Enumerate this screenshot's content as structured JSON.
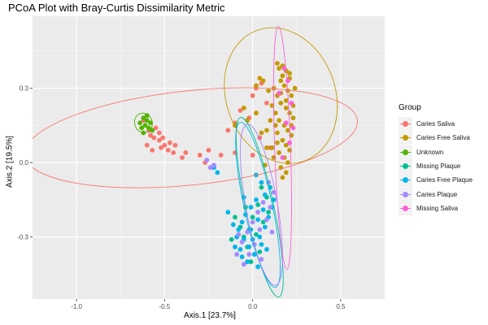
{
  "chart_data": {
    "type": "scatter",
    "title": "PCoA Plot with Bray-Curtis Dissimilarity Metric",
    "xlabel": "Axis.1   [23.7%]",
    "ylabel": "Axis.2   [19.5%]",
    "xlim": [
      -1.25,
      0.75
    ],
    "ylim": [
      -0.55,
      0.59
    ],
    "x_ticks": [
      -1.0,
      -0.5,
      0.0,
      0.5
    ],
    "x_tick_labels": [
      "-1.0",
      "-0.5",
      "0.0",
      "0.5"
    ],
    "y_ticks": [
      -0.3,
      0.0,
      0.3
    ],
    "y_tick_labels": [
      "-0.3",
      "0.0",
      "0.3"
    ],
    "grid": true,
    "legend_title": "Group",
    "legend_position": "right",
    "series": [
      {
        "name": "Caries Saliva",
        "color": "#F8766D",
        "points": [
          [
            -0.62,
            0.17
          ],
          [
            -0.59,
            0.13
          ],
          [
            -0.56,
            0.1
          ],
          [
            -0.53,
            0.09
          ],
          [
            -0.52,
            0.06
          ],
          [
            -0.55,
            0.14
          ],
          [
            -0.5,
            0.07
          ],
          [
            -0.48,
            0.05
          ],
          [
            -0.45,
            0.04
          ],
          [
            -0.57,
            0.05
          ],
          [
            -0.6,
            0.07
          ],
          [
            -0.53,
            0.12
          ],
          [
            -0.51,
            0.1
          ],
          [
            -0.47,
            0.08
          ],
          [
            -0.44,
            0.07
          ],
          [
            -0.58,
            0.11
          ],
          [
            -0.4,
            0.02
          ],
          [
            -0.38,
            0.04
          ],
          [
            -0.3,
            0.03
          ],
          [
            -0.27,
            0.0
          ],
          [
            -0.25,
            0.05
          ],
          [
            -0.22,
            -0.02
          ],
          [
            -0.18,
            0.03
          ],
          [
            -0.14,
            0.13
          ],
          [
            -0.1,
            0.16
          ],
          [
            -0.07,
            0.21
          ],
          [
            0.0,
            0.27
          ],
          [
            0.02,
            0.3
          ],
          [
            0.05,
            0.32
          ],
          [
            0.08,
            0.24
          ],
          [
            -0.02,
            0.18
          ],
          [
            0.04,
            0.1
          ],
          [
            0.1,
            0.06
          ],
          [
            0.12,
            0.02
          ],
          [
            -0.1,
            0.04
          ],
          [
            0.0,
            0.03
          ]
        ]
      },
      {
        "name": "Caries Free Saliva",
        "color": "#C49A00",
        "points": [
          [
            0.14,
            0.4
          ],
          [
            0.15,
            0.38
          ],
          [
            0.17,
            0.39
          ],
          [
            0.19,
            0.37
          ],
          [
            0.21,
            0.36
          ],
          [
            0.16,
            0.33
          ],
          [
            0.18,
            0.31
          ],
          [
            0.2,
            0.29
          ],
          [
            0.22,
            0.27
          ],
          [
            0.14,
            0.27
          ],
          [
            0.16,
            0.24
          ],
          [
            0.19,
            0.22
          ],
          [
            0.21,
            0.2
          ],
          [
            0.23,
            0.18
          ],
          [
            0.13,
            0.2
          ],
          [
            0.15,
            0.17
          ],
          [
            0.18,
            0.15
          ],
          [
            0.2,
            0.13
          ],
          [
            0.22,
            0.11
          ],
          [
            0.14,
            0.12
          ],
          [
            0.17,
            0.09
          ],
          [
            0.19,
            0.07
          ],
          [
            0.21,
            0.05
          ],
          [
            0.15,
            0.04
          ],
          [
            0.18,
            0.02
          ],
          [
            0.2,
            0.0
          ],
          [
            0.16,
            -0.02
          ],
          [
            0.19,
            -0.04
          ],
          [
            0.17,
            -0.06
          ],
          [
            0.11,
            0.23
          ],
          [
            0.1,
            0.17
          ],
          [
            0.08,
            0.13
          ],
          [
            0.12,
            0.3
          ],
          [
            0.09,
            0.29
          ],
          [
            0.06,
            0.33
          ],
          [
            0.04,
            0.34
          ],
          [
            0.02,
            0.31
          ],
          [
            -0.05,
            0.22
          ],
          [
            -0.1,
            0.15
          ],
          [
            0.02,
            0.2
          ],
          [
            -0.03,
            0.17
          ],
          [
            0.05,
            0.12
          ],
          [
            0.08,
            0.06
          ],
          [
            0.12,
            0.02
          ],
          [
            0.07,
            -0.01
          ],
          [
            0.24,
            0.3
          ],
          [
            0.23,
            0.23
          ],
          [
            0.21,
            0.34
          ],
          [
            0.17,
            0.35
          ],
          [
            0.14,
            0.08
          ],
          [
            0.22,
            0.15
          ],
          [
            0.11,
            0.06
          ],
          [
            0.13,
            0.15
          ],
          [
            0.16,
            0.28
          ],
          [
            0.19,
            0.25
          ]
        ]
      },
      {
        "name": "Unknown",
        "color": "#53B400",
        "points": [
          [
            -0.62,
            0.18
          ],
          [
            -0.6,
            0.17
          ],
          [
            -0.64,
            0.16
          ],
          [
            -0.61,
            0.15
          ],
          [
            -0.59,
            0.14
          ],
          [
            -0.63,
            0.14
          ],
          [
            -0.6,
            0.19
          ],
          [
            -0.58,
            0.16
          ],
          [
            -0.62,
            0.12
          ],
          [
            -0.57,
            0.13
          ]
        ]
      },
      {
        "name": "Missing Plaque",
        "color": "#00C094",
        "points": [
          [
            0.05,
            -0.1
          ],
          [
            0.08,
            -0.14
          ],
          [
            0.03,
            -0.17
          ],
          [
            0.0,
            -0.22
          ],
          [
            -0.02,
            -0.27
          ],
          [
            -0.05,
            -0.3
          ],
          [
            -0.03,
            -0.34
          ],
          [
            -0.07,
            -0.26
          ],
          [
            0.02,
            -0.29
          ],
          [
            0.06,
            -0.24
          ],
          [
            -0.1,
            -0.22
          ],
          [
            -0.12,
            -0.31
          ],
          [
            0.04,
            -0.36
          ],
          [
            -0.01,
            -0.4
          ],
          [
            0.09,
            -0.2
          ],
          [
            -0.04,
            -0.18
          ]
        ]
      },
      {
        "name": "Caries Free Plaque",
        "color": "#00B6EB",
        "points": [
          [
            0.05,
            -0.08
          ],
          [
            0.1,
            -0.1
          ],
          [
            0.07,
            -0.13
          ],
          [
            0.02,
            -0.15
          ],
          [
            -0.01,
            -0.18
          ],
          [
            -0.04,
            -0.21
          ],
          [
            -0.06,
            -0.24
          ],
          [
            -0.08,
            -0.27
          ],
          [
            -0.05,
            -0.31
          ],
          [
            -0.02,
            -0.34
          ],
          [
            0.01,
            -0.37
          ],
          [
            -0.03,
            -0.4
          ],
          [
            0.04,
            -0.3
          ],
          [
            0.07,
            -0.26
          ],
          [
            0.09,
            -0.22
          ],
          [
            0.11,
            -0.18
          ],
          [
            0.03,
            -0.23
          ],
          [
            -0.01,
            -0.27
          ],
          [
            0.05,
            -0.33
          ],
          [
            -0.07,
            -0.35
          ],
          [
            -0.09,
            -0.3
          ],
          [
            0.0,
            -0.31
          ],
          [
            0.06,
            -0.19
          ],
          [
            0.12,
            -0.15
          ],
          [
            -0.11,
            -0.25
          ],
          [
            -0.14,
            -0.2
          ],
          [
            -0.2,
            -0.04
          ],
          [
            -0.22,
            -0.02
          ],
          [
            0.02,
            -0.05
          ],
          [
            -0.05,
            -0.14
          ],
          [
            0.08,
            -0.35
          ],
          [
            -0.06,
            -0.38
          ],
          [
            0.03,
            -0.42
          ],
          [
            -0.1,
            -0.34
          ]
        ]
      },
      {
        "name": "Caries Plaque",
        "color": "#A58AFF",
        "points": [
          [
            0.09,
            -0.08
          ],
          [
            0.12,
            -0.12
          ],
          [
            0.06,
            -0.16
          ],
          [
            0.03,
            -0.2
          ],
          [
            0.0,
            -0.24
          ],
          [
            -0.03,
            -0.28
          ],
          [
            -0.06,
            -0.32
          ],
          [
            -0.02,
            -0.37
          ],
          [
            0.04,
            -0.27
          ],
          [
            0.08,
            -0.23
          ],
          [
            -0.08,
            -0.29
          ],
          [
            0.01,
            -0.33
          ],
          [
            -0.05,
            -0.41
          ],
          [
            -0.22,
            -0.01
          ],
          [
            -0.26,
            0.01
          ],
          [
            -0.24,
            -0.02
          ],
          [
            0.1,
            -0.18
          ],
          [
            -0.09,
            -0.37
          ],
          [
            0.05,
            -0.39
          ],
          [
            0.11,
            -0.28
          ]
        ]
      },
      {
        "name": "Missing Saliva",
        "color": "#FB61D7",
        "points": [
          [
            0.18,
            0.38
          ],
          [
            0.2,
            0.33
          ],
          [
            0.22,
            0.24
          ],
          [
            0.19,
            0.16
          ],
          [
            0.21,
            0.08
          ],
          [
            0.17,
            0.02
          ],
          [
            0.23,
            0.14
          ],
          [
            0.15,
            0.28
          ]
        ]
      }
    ],
    "ellipses": [
      {
        "series": "Caries Saliva",
        "cx": -0.35,
        "cy": 0.1,
        "rx": 0.95,
        "ry": 0.19,
        "angle_deg": -6
      },
      {
        "series": "Caries Free Saliva",
        "cx": 0.16,
        "cy": 0.27,
        "rx": 0.31,
        "ry": 0.28,
        "angle_deg": -20
      },
      {
        "series": "Unknown",
        "cx": -0.62,
        "cy": 0.16,
        "rx": 0.05,
        "ry": 0.04,
        "angle_deg": -20
      },
      {
        "series": "Missing Plaque",
        "cx": 0.04,
        "cy": -0.18,
        "rx": 0.08,
        "ry": 0.37,
        "angle_deg": -12
      },
      {
        "series": "Caries Free Plaque",
        "cx": 0.03,
        "cy": -0.17,
        "rx": 0.08,
        "ry": 0.34,
        "angle_deg": -12
      },
      {
        "series": "Caries Plaque",
        "cx": 0.05,
        "cy": -0.17,
        "rx": 0.09,
        "ry": 0.33,
        "angle_deg": -10
      },
      {
        "series": "Missing Saliva",
        "cx": 0.17,
        "cy": 0.06,
        "rx": 0.045,
        "ry": 0.49,
        "angle_deg": -2
      }
    ]
  }
}
